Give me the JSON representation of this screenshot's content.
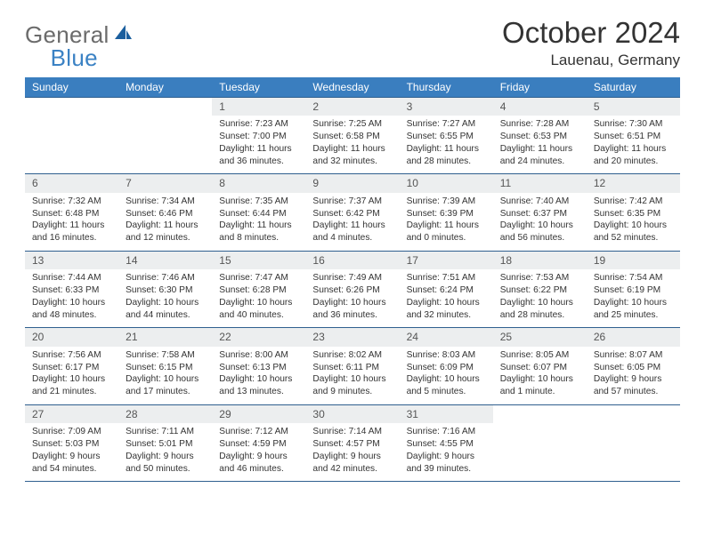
{
  "logo": {
    "general": "General",
    "blue": "Blue"
  },
  "title": "October 2024",
  "location": "Lauenau, Germany",
  "colors": {
    "header_bg": "#3a7ebf",
    "header_border": "#2f5f8f",
    "daynum_bg": "#eceeef",
    "text": "#333333",
    "logo_gray": "#6b6b6b",
    "logo_blue": "#3b82c4"
  },
  "dow": [
    "Sunday",
    "Monday",
    "Tuesday",
    "Wednesday",
    "Thursday",
    "Friday",
    "Saturday"
  ],
  "weeks": [
    [
      {
        "n": "",
        "sunrise": "",
        "sunset": "",
        "daylight": ""
      },
      {
        "n": "",
        "sunrise": "",
        "sunset": "",
        "daylight": ""
      },
      {
        "n": "1",
        "sunrise": "7:23 AM",
        "sunset": "7:00 PM",
        "daylight": "11 hours and 36 minutes."
      },
      {
        "n": "2",
        "sunrise": "7:25 AM",
        "sunset": "6:58 PM",
        "daylight": "11 hours and 32 minutes."
      },
      {
        "n": "3",
        "sunrise": "7:27 AM",
        "sunset": "6:55 PM",
        "daylight": "11 hours and 28 minutes."
      },
      {
        "n": "4",
        "sunrise": "7:28 AM",
        "sunset": "6:53 PM",
        "daylight": "11 hours and 24 minutes."
      },
      {
        "n": "5",
        "sunrise": "7:30 AM",
        "sunset": "6:51 PM",
        "daylight": "11 hours and 20 minutes."
      }
    ],
    [
      {
        "n": "6",
        "sunrise": "7:32 AM",
        "sunset": "6:48 PM",
        "daylight": "11 hours and 16 minutes."
      },
      {
        "n": "7",
        "sunrise": "7:34 AM",
        "sunset": "6:46 PM",
        "daylight": "11 hours and 12 minutes."
      },
      {
        "n": "8",
        "sunrise": "7:35 AM",
        "sunset": "6:44 PM",
        "daylight": "11 hours and 8 minutes."
      },
      {
        "n": "9",
        "sunrise": "7:37 AM",
        "sunset": "6:42 PM",
        "daylight": "11 hours and 4 minutes."
      },
      {
        "n": "10",
        "sunrise": "7:39 AM",
        "sunset": "6:39 PM",
        "daylight": "11 hours and 0 minutes."
      },
      {
        "n": "11",
        "sunrise": "7:40 AM",
        "sunset": "6:37 PM",
        "daylight": "10 hours and 56 minutes."
      },
      {
        "n": "12",
        "sunrise": "7:42 AM",
        "sunset": "6:35 PM",
        "daylight": "10 hours and 52 minutes."
      }
    ],
    [
      {
        "n": "13",
        "sunrise": "7:44 AM",
        "sunset": "6:33 PM",
        "daylight": "10 hours and 48 minutes."
      },
      {
        "n": "14",
        "sunrise": "7:46 AM",
        "sunset": "6:30 PM",
        "daylight": "10 hours and 44 minutes."
      },
      {
        "n": "15",
        "sunrise": "7:47 AM",
        "sunset": "6:28 PM",
        "daylight": "10 hours and 40 minutes."
      },
      {
        "n": "16",
        "sunrise": "7:49 AM",
        "sunset": "6:26 PM",
        "daylight": "10 hours and 36 minutes."
      },
      {
        "n": "17",
        "sunrise": "7:51 AM",
        "sunset": "6:24 PM",
        "daylight": "10 hours and 32 minutes."
      },
      {
        "n": "18",
        "sunrise": "7:53 AM",
        "sunset": "6:22 PM",
        "daylight": "10 hours and 28 minutes."
      },
      {
        "n": "19",
        "sunrise": "7:54 AM",
        "sunset": "6:19 PM",
        "daylight": "10 hours and 25 minutes."
      }
    ],
    [
      {
        "n": "20",
        "sunrise": "7:56 AM",
        "sunset": "6:17 PM",
        "daylight": "10 hours and 21 minutes."
      },
      {
        "n": "21",
        "sunrise": "7:58 AM",
        "sunset": "6:15 PM",
        "daylight": "10 hours and 17 minutes."
      },
      {
        "n": "22",
        "sunrise": "8:00 AM",
        "sunset": "6:13 PM",
        "daylight": "10 hours and 13 minutes."
      },
      {
        "n": "23",
        "sunrise": "8:02 AM",
        "sunset": "6:11 PM",
        "daylight": "10 hours and 9 minutes."
      },
      {
        "n": "24",
        "sunrise": "8:03 AM",
        "sunset": "6:09 PM",
        "daylight": "10 hours and 5 minutes."
      },
      {
        "n": "25",
        "sunrise": "8:05 AM",
        "sunset": "6:07 PM",
        "daylight": "10 hours and 1 minute."
      },
      {
        "n": "26",
        "sunrise": "8:07 AM",
        "sunset": "6:05 PM",
        "daylight": "9 hours and 57 minutes."
      }
    ],
    [
      {
        "n": "27",
        "sunrise": "7:09 AM",
        "sunset": "5:03 PM",
        "daylight": "9 hours and 54 minutes."
      },
      {
        "n": "28",
        "sunrise": "7:11 AM",
        "sunset": "5:01 PM",
        "daylight": "9 hours and 50 minutes."
      },
      {
        "n": "29",
        "sunrise": "7:12 AM",
        "sunset": "4:59 PM",
        "daylight": "9 hours and 46 minutes."
      },
      {
        "n": "30",
        "sunrise": "7:14 AM",
        "sunset": "4:57 PM",
        "daylight": "9 hours and 42 minutes."
      },
      {
        "n": "31",
        "sunrise": "7:16 AM",
        "sunset": "4:55 PM",
        "daylight": "9 hours and 39 minutes."
      },
      {
        "n": "",
        "sunrise": "",
        "sunset": "",
        "daylight": ""
      },
      {
        "n": "",
        "sunrise": "",
        "sunset": "",
        "daylight": ""
      }
    ]
  ],
  "labels": {
    "sunrise": "Sunrise: ",
    "sunset": "Sunset: ",
    "daylight": "Daylight: "
  }
}
